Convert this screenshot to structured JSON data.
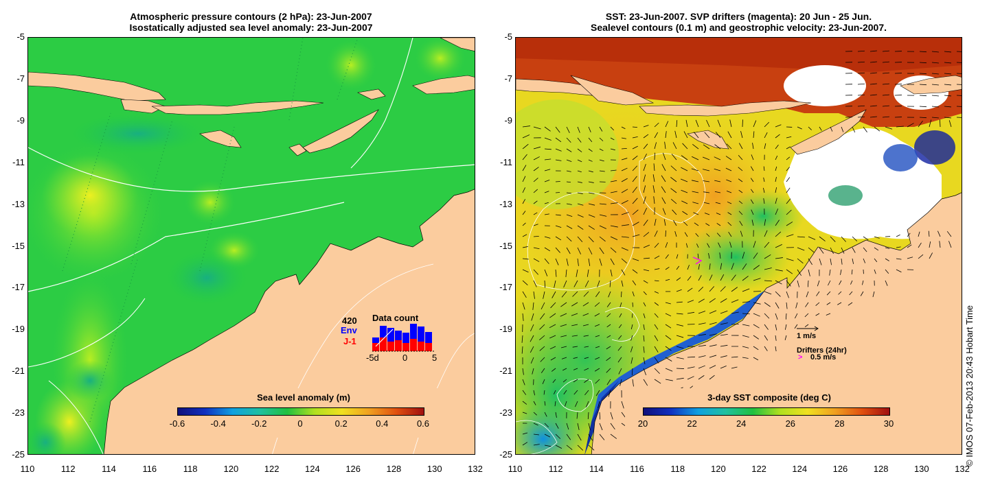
{
  "left_panel": {
    "title_line1": "Atmospheric pressure contours (2 hPa): 23-Jun-2007",
    "title_line2": "Isostatically adjusted sea level anomaly: 23-Jun-2007",
    "colorbar": {
      "title": "Sea level anomaly (m)",
      "labels": [
        "-0.6",
        "-0.4",
        "-0.2",
        "0",
        "0.2",
        "0.4",
        "0.6"
      ]
    },
    "data_count": {
      "title": "Data count",
      "count": "420",
      "series1": "Env",
      "series2": "J-1",
      "axis_labels": [
        "-5d",
        "0",
        "5"
      ],
      "series1_color": "#0000ff",
      "series2_color": "#ff0000"
    }
  },
  "right_panel": {
    "title_line1": "SST: 23-Jun-2007. SVP drifters (magenta): 20 Jun - 25 Jun.",
    "title_line2": "Sealevel contours (0.1 m) and geostrophic velocity: 23-Jun-2007.",
    "colorbar": {
      "title": "3-day SST composite (deg C)",
      "labels": [
        "20",
        "22",
        "24",
        "26",
        "28",
        "30"
      ]
    },
    "velocity_legend": "1 m/s",
    "drifters_legend_title": "Drifters (24hr)",
    "drifters_legend_value": "0.5 m/s"
  },
  "axes": {
    "y_ticks": [
      "-5",
      "-7",
      "-9",
      "-11",
      "-13",
      "-15",
      "-17",
      "-19",
      "-21",
      "-23",
      "-25"
    ],
    "x_ticks": [
      "110",
      "112",
      "114",
      "116",
      "118",
      "120",
      "122",
      "124",
      "126",
      "128",
      "130",
      "132"
    ]
  },
  "credit": "© IMOS 07-Feb-2013 20:43 Hobart Time",
  "colors": {
    "land": "#fbcc9e",
    "ocean_sla": "#22cc44",
    "sst_warm": "#f0a020",
    "sst_hot": "#c03010"
  }
}
